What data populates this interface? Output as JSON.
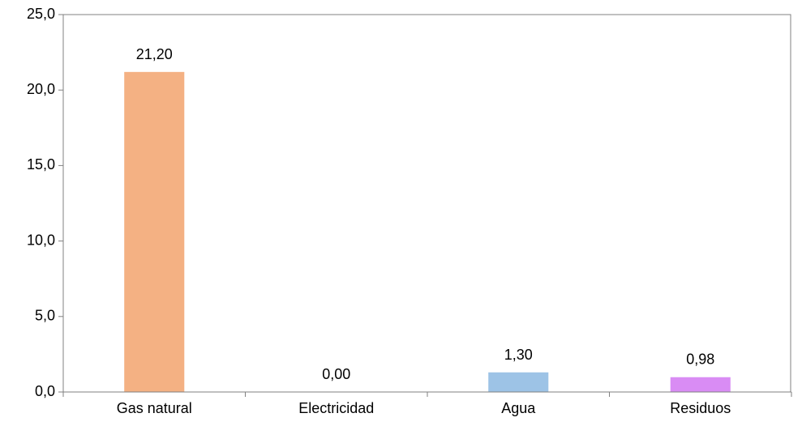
{
  "chart_data": {
    "type": "bar",
    "categories": [
      "Gas natural",
      "Electricidad",
      "Agua",
      "Residuos"
    ],
    "values": [
      21.2,
      0.0,
      1.3,
      0.98
    ],
    "value_labels": [
      "21,20",
      "0,00",
      "1,30",
      "0,98"
    ],
    "colors": [
      "#f4b183",
      "#4472c4",
      "#9dc3e6",
      "#d98cf4"
    ],
    "ylim": [
      0,
      25
    ],
    "yticks": [
      0,
      5,
      10,
      15,
      20,
      25
    ],
    "ytick_labels": [
      "0,0",
      "5,0",
      "10,0",
      "15,0",
      "20,0",
      "25,0"
    ],
    "title": "",
    "xlabel": "",
    "ylabel": "",
    "grid": false,
    "legend": "none"
  }
}
